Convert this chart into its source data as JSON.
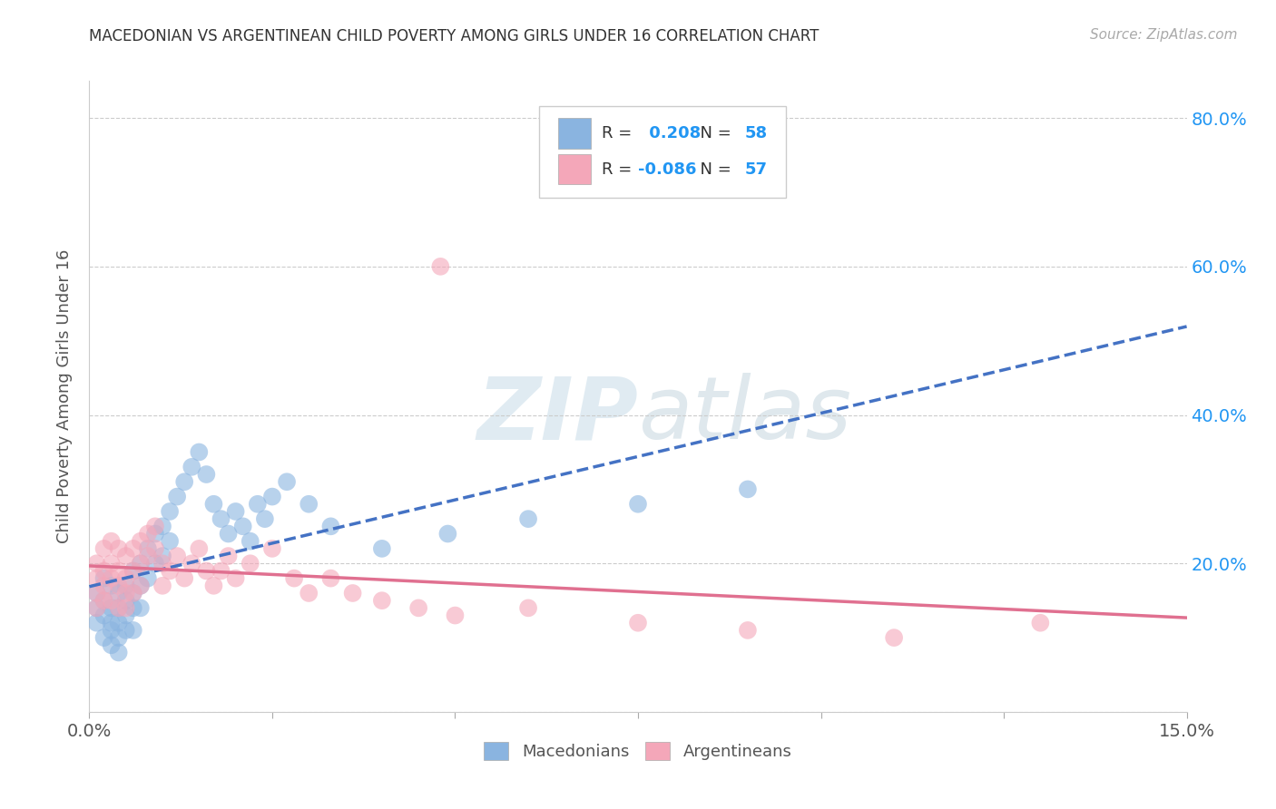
{
  "title": "MACEDONIAN VS ARGENTINEAN CHILD POVERTY AMONG GIRLS UNDER 16 CORRELATION CHART",
  "source": "Source: ZipAtlas.com",
  "ylabel": "Child Poverty Among Girls Under 16",
  "xlim": [
    0.0,
    0.15
  ],
  "ylim": [
    0.0,
    0.85
  ],
  "xtick_positions": [
    0.0,
    0.025,
    0.05,
    0.075,
    0.1,
    0.125,
    0.15
  ],
  "xtick_labels": [
    "0.0%",
    "",
    "",
    "",
    "",
    "",
    "15.0%"
  ],
  "ytick_positions": [
    0.0,
    0.2,
    0.4,
    0.6,
    0.8
  ],
  "ytick_labels_right": [
    "",
    "20.0%",
    "40.0%",
    "60.0%",
    "80.0%"
  ],
  "macedonian_color": "#8ab4e0",
  "argentinean_color": "#f4a7b9",
  "macedonian_line_color": "#4472c4",
  "argentinean_line_color": "#e07090",
  "R_mac": 0.208,
  "N_mac": 58,
  "R_arg": -0.086,
  "N_arg": 57,
  "blue_text_color": "#2196f3",
  "watermark_color": "#d8e8f0",
  "mac_x": [
    0.001,
    0.001,
    0.001,
    0.002,
    0.002,
    0.002,
    0.002,
    0.003,
    0.003,
    0.003,
    0.003,
    0.003,
    0.004,
    0.004,
    0.004,
    0.004,
    0.004,
    0.005,
    0.005,
    0.005,
    0.005,
    0.006,
    0.006,
    0.006,
    0.006,
    0.007,
    0.007,
    0.007,
    0.008,
    0.008,
    0.009,
    0.009,
    0.01,
    0.01,
    0.011,
    0.011,
    0.012,
    0.013,
    0.014,
    0.015,
    0.016,
    0.017,
    0.018,
    0.019,
    0.02,
    0.021,
    0.022,
    0.023,
    0.024,
    0.025,
    0.027,
    0.03,
    0.033,
    0.04,
    0.049,
    0.06,
    0.075,
    0.09
  ],
  "mac_y": [
    0.16,
    0.14,
    0.12,
    0.18,
    0.15,
    0.13,
    0.1,
    0.17,
    0.14,
    0.12,
    0.11,
    0.09,
    0.16,
    0.14,
    0.12,
    0.1,
    0.08,
    0.17,
    0.15,
    0.13,
    0.11,
    0.19,
    0.16,
    0.14,
    0.11,
    0.2,
    0.17,
    0.14,
    0.22,
    0.18,
    0.24,
    0.2,
    0.25,
    0.21,
    0.27,
    0.23,
    0.29,
    0.31,
    0.33,
    0.35,
    0.32,
    0.28,
    0.26,
    0.24,
    0.27,
    0.25,
    0.23,
    0.28,
    0.26,
    0.29,
    0.31,
    0.28,
    0.25,
    0.22,
    0.24,
    0.26,
    0.28,
    0.3
  ],
  "arg_x": [
    0.001,
    0.001,
    0.001,
    0.001,
    0.002,
    0.002,
    0.002,
    0.002,
    0.003,
    0.003,
    0.003,
    0.003,
    0.004,
    0.004,
    0.004,
    0.004,
    0.005,
    0.005,
    0.005,
    0.005,
    0.006,
    0.006,
    0.006,
    0.007,
    0.007,
    0.007,
    0.008,
    0.008,
    0.009,
    0.009,
    0.01,
    0.01,
    0.011,
    0.012,
    0.013,
    0.014,
    0.015,
    0.016,
    0.017,
    0.018,
    0.019,
    0.02,
    0.022,
    0.025,
    0.028,
    0.03,
    0.033,
    0.036,
    0.04,
    0.045,
    0.05,
    0.06,
    0.075,
    0.09,
    0.11,
    0.13,
    0.048
  ],
  "arg_y": [
    0.2,
    0.18,
    0.16,
    0.14,
    0.22,
    0.19,
    0.17,
    0.15,
    0.23,
    0.2,
    0.18,
    0.15,
    0.22,
    0.19,
    0.17,
    0.14,
    0.21,
    0.18,
    0.16,
    0.14,
    0.22,
    0.19,
    0.16,
    0.23,
    0.2,
    0.17,
    0.24,
    0.21,
    0.25,
    0.22,
    0.2,
    0.17,
    0.19,
    0.21,
    0.18,
    0.2,
    0.22,
    0.19,
    0.17,
    0.19,
    0.21,
    0.18,
    0.2,
    0.22,
    0.18,
    0.16,
    0.18,
    0.16,
    0.15,
    0.14,
    0.13,
    0.14,
    0.12,
    0.11,
    0.1,
    0.12,
    0.6
  ]
}
